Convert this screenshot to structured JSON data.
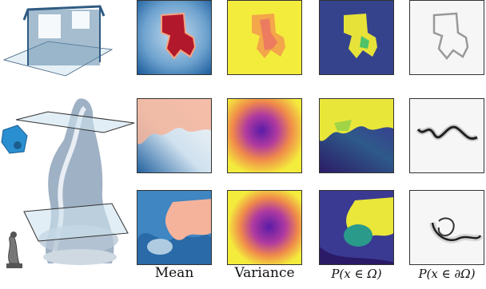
{
  "columns": [
    {
      "label": "Mean"
    },
    {
      "label": "Variance"
    },
    {
      "label": "P(x ∈ Ω)"
    },
    {
      "label": "P(x ∈ ∂Ω)"
    }
  ],
  "rows": [
    "room-scene",
    "statue-slice-upper",
    "statue-slice-lower"
  ],
  "colors": {
    "mean_low": "#2c6fb2",
    "mean_high": "#b2182b",
    "variance_low": "#3a0ca3",
    "variance_high": "#f3f34a",
    "inside_low": "#2b1a66",
    "inside_high": "#f0e442",
    "boundary_bg": "#f2f2f2",
    "boundary_line": "#111111"
  }
}
